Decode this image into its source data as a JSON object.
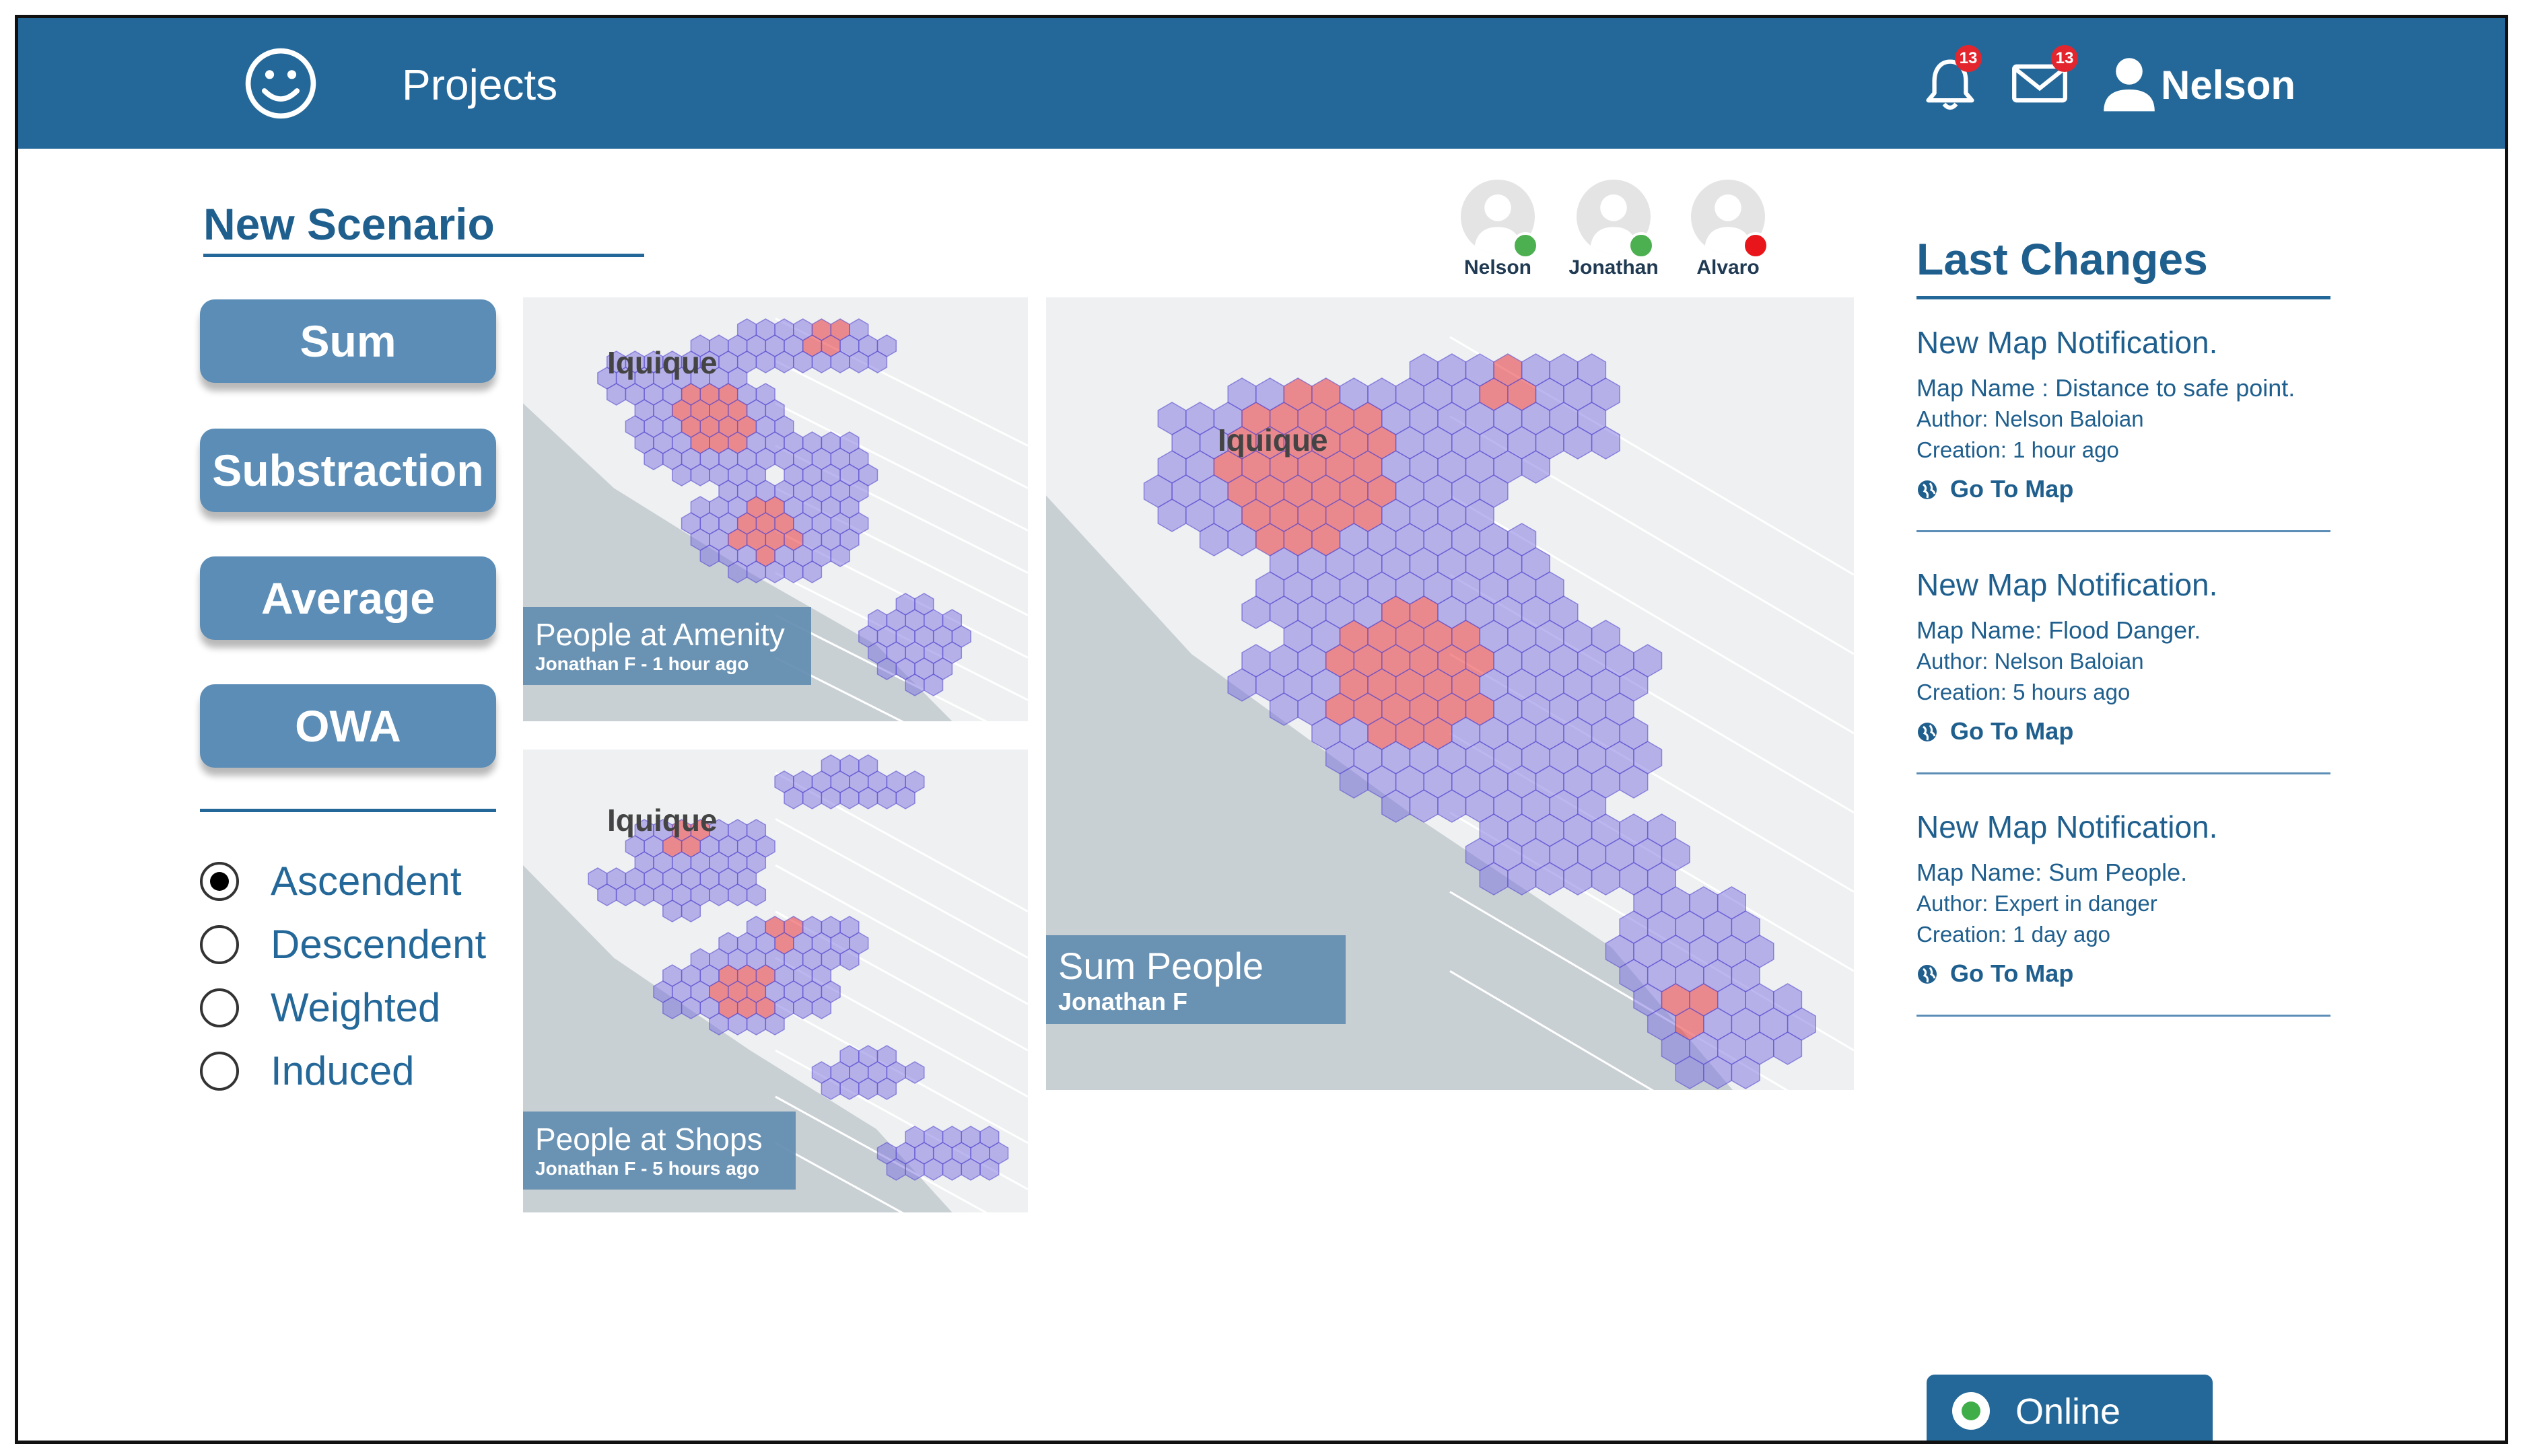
{
  "header": {
    "title": "Projects",
    "notifications_count": "13",
    "messages_count": "13",
    "user_name": "Nelson"
  },
  "scenario": {
    "title": "New Scenario",
    "operations": [
      "Sum",
      "Substraction",
      "Average",
      "OWA"
    ],
    "order_options": [
      {
        "label": "Ascendent",
        "selected": true
      },
      {
        "label": "Descendent",
        "selected": false
      },
      {
        "label": "Weighted",
        "selected": false
      },
      {
        "label": "Induced",
        "selected": false
      }
    ]
  },
  "collaborators": [
    {
      "name": "Nelson",
      "status_color": "#4caf50"
    },
    {
      "name": "Jonathan",
      "status_color": "#4caf50"
    },
    {
      "name": "Alvaro",
      "status_color": "#e8161b"
    }
  ],
  "maps": [
    {
      "title": "People at Amenity",
      "subtitle": "Jonathan F - 1 hour ago",
      "place": "Iquique"
    },
    {
      "title": "People at Shops",
      "subtitle": "Jonathan F - 5 hours ago",
      "place": "Iquique"
    },
    {
      "title": "Sum People",
      "subtitle": "Jonathan F",
      "place": "Iquique"
    }
  ],
  "last_changes": {
    "title": "Last Changes",
    "items": [
      {
        "heading": "New Map Notification.",
        "map_name": "Map Name : Distance to safe point.",
        "author": "Author: Nelson Baloian",
        "creation": "Creation: 1 hour ago",
        "link": "Go To Map"
      },
      {
        "heading": "New Map Notification.",
        "map_name": "Map Name: Flood Danger.",
        "author": "Author:  Nelson Baloian",
        "creation": "Creation: 5 hours ago",
        "link": "Go To Map"
      },
      {
        "heading": "New Map Notification.",
        "map_name": "Map Name: Sum People.",
        "author": "Author: Expert in danger",
        "creation": "Creation: 1 day ago",
        "link": "Go To Map"
      }
    ]
  },
  "status": {
    "label": "Online",
    "color": "#3fae49"
  },
  "colors": {
    "primary": "#246899",
    "button": "#5b8db6",
    "hex_low": "#7b6fe0",
    "hex_high": "#e8353b"
  }
}
